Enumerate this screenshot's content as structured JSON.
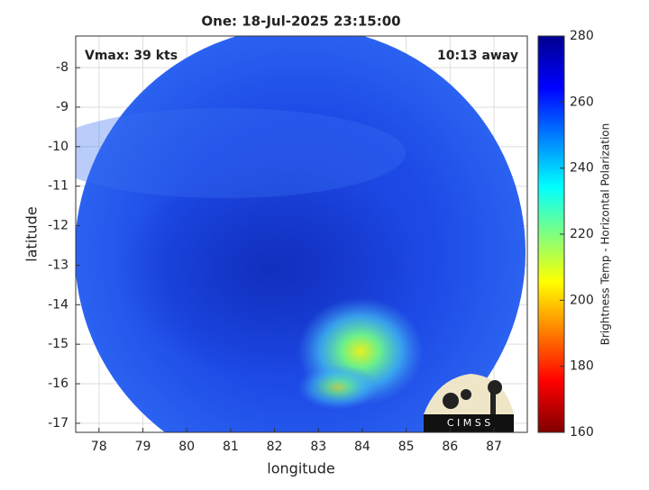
{
  "chart_data": {
    "type": "map",
    "title": "One: 18-Jul-2025 23:15:00",
    "annotations": {
      "left": "Vmax: 39 kts",
      "right": "10:13 away"
    },
    "xlabel": "longitude",
    "ylabel": "latitude",
    "xlim": [
      77.47,
      87.76
    ],
    "ylim": [
      -17.23,
      -7.2
    ],
    "xticks": [
      78,
      79,
      80,
      81,
      82,
      83,
      84,
      85,
      86,
      87
    ],
    "yticks": [
      -8,
      -9,
      -10,
      -11,
      -12,
      -13,
      -14,
      -15,
      -16,
      -17
    ],
    "grid": true,
    "colorbar": {
      "label": "Brightness Temp - Horizontal Polarization",
      "lim": [
        160,
        280
      ],
      "ticks": [
        160,
        180,
        200,
        220,
        240,
        260,
        280
      ]
    },
    "logo": "C I M S S"
  }
}
